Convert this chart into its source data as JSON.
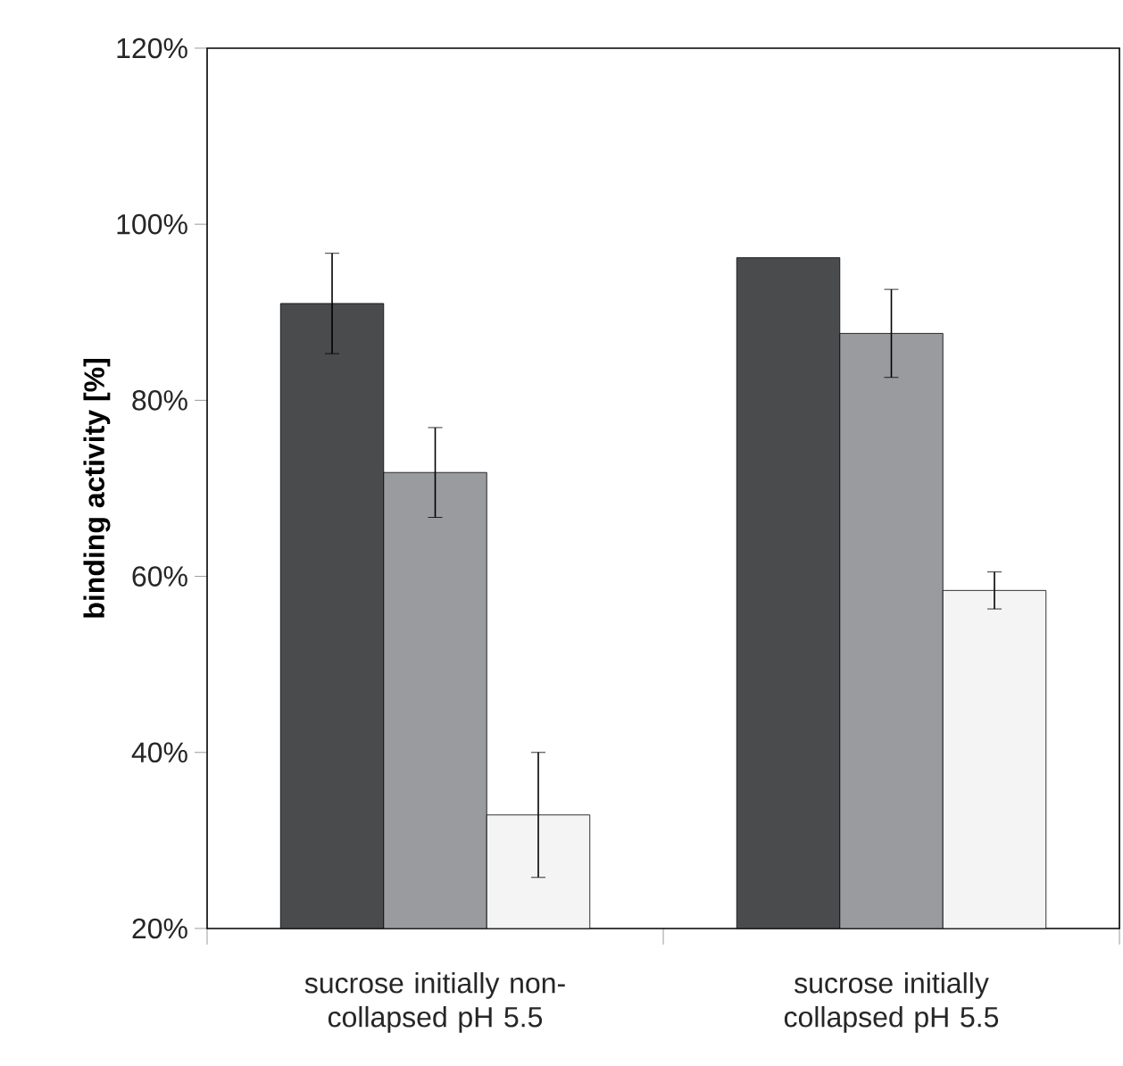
{
  "chart_data": {
    "type": "bar",
    "ylabel": "binding activity [%]",
    "categories": [
      "sucrose initially non-collapsed pH 5.5",
      "sucrose initially collapsed pH 5.5"
    ],
    "series": [
      {
        "color": "#4a4b4d",
        "values": [
          91.0,
          96.2
        ],
        "errors": [
          5.7,
          null
        ]
      },
      {
        "color": "#9a9b9e",
        "values": [
          71.8,
          87.6
        ],
        "errors": [
          5.1,
          5.0
        ]
      },
      {
        "color": "#f4f4f4",
        "values": [
          32.9,
          58.4
        ],
        "errors": [
          7.1,
          2.1
        ]
      }
    ],
    "ylim": [
      20,
      120
    ],
    "yticks": [
      {
        "value": 20,
        "label": "20%"
      },
      {
        "value": 40,
        "label": "40%"
      },
      {
        "value": 60,
        "label": "60%"
      },
      {
        "value": 80,
        "label": "80%"
      },
      {
        "value": 100,
        "label": "100%"
      },
      {
        "value": 120,
        "label": "120%"
      }
    ]
  }
}
